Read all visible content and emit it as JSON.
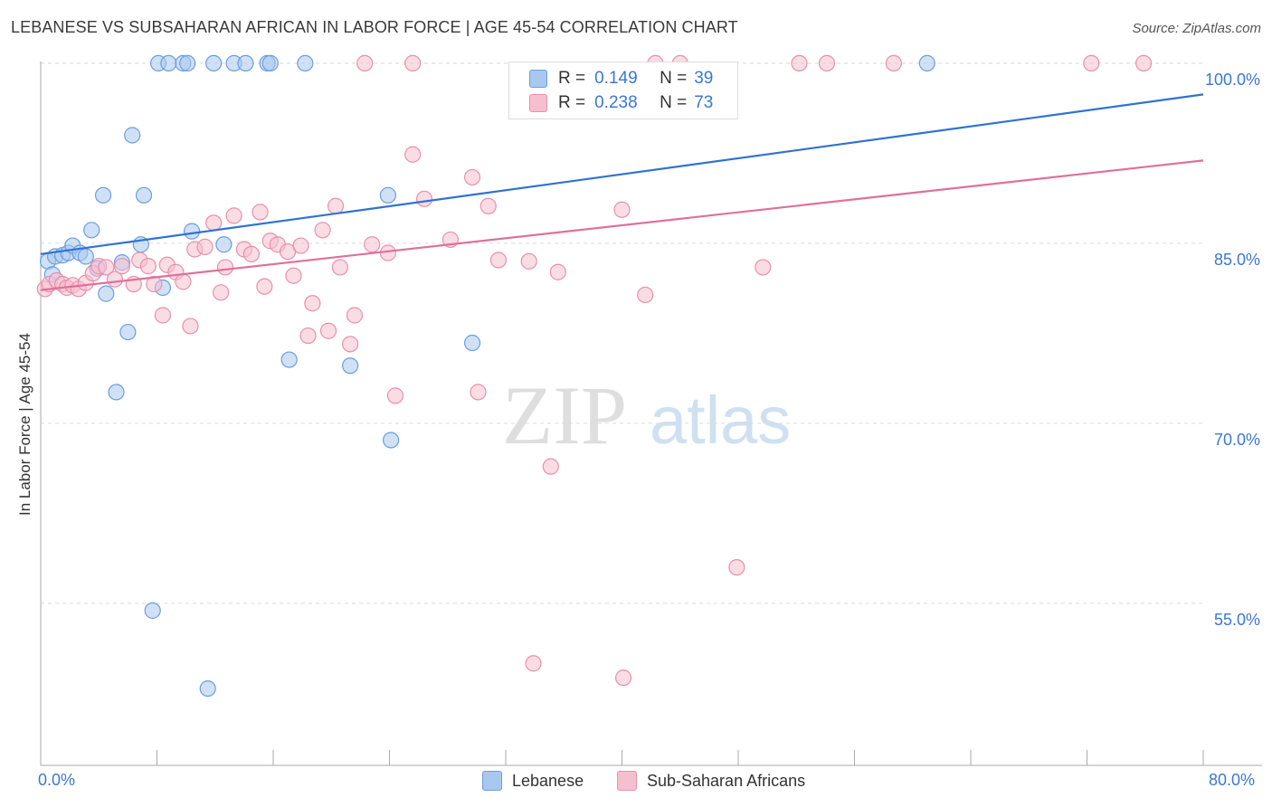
{
  "title": "LEBANESE VS SUBSAHARAN AFRICAN IN LABOR FORCE | AGE 45-54 CORRELATION CHART",
  "source": "Source: ZipAtlas.com",
  "watermark": {
    "zip": "ZIP",
    "atlas": "atlas"
  },
  "legend_top": {
    "rows": [
      {
        "r_label": "R =",
        "r_value": "0.149",
        "n_label": "N =",
        "n_value": "39",
        "color": "#a9c8ef",
        "border": "#6a9ee0"
      },
      {
        "r_label": "R =",
        "r_value": "0.238",
        "n_label": "N =",
        "n_value": "73",
        "color": "#f6bfd0",
        "border": "#e890ac"
      }
    ]
  },
  "legend_bottom": {
    "items": [
      {
        "label": "Lebanese",
        "color": "#a9c8ef",
        "border": "#6a9ee0"
      },
      {
        "label": "Sub-Saharan Africans",
        "color": "#f6bfd0",
        "border": "#e890ac"
      }
    ]
  },
  "chart_data": {
    "type": "scatter",
    "title": "LEBANESE VS SUBSAHARAN AFRICAN IN LABOR FORCE | AGE 45-54 CORRELATION CHART",
    "xlabel": "",
    "ylabel": "In Labor Force | Age 45-54",
    "xlim": [
      0,
      80
    ],
    "ylim": [
      41.5,
      101.5
    ],
    "x_tick_labels": [
      "0.0%",
      "80.0%"
    ],
    "y_ticks": [
      55,
      70,
      85,
      100
    ],
    "y_tick_labels": [
      "55.0%",
      "70.0%",
      "85.0%",
      "100.0%"
    ],
    "grid": true,
    "legend_position": "top-center",
    "series": [
      {
        "name": "Lebanese",
        "color": "#6a9ee0",
        "fill": "#a9c8ef",
        "trend_color": "#2f72d2",
        "trend": {
          "x": [
            0,
            80
          ],
          "y": [
            84.1,
            97.4
          ]
        },
        "points": [
          [
            0.5,
            83.5
          ],
          [
            0.8,
            82.4
          ],
          [
            1.0,
            83.9
          ],
          [
            1.5,
            84.0
          ],
          [
            1.9,
            84.2
          ],
          [
            2.2,
            84.8
          ],
          [
            2.7,
            84.2
          ],
          [
            3.1,
            83.9
          ],
          [
            3.5,
            86.1
          ],
          [
            3.9,
            82.9
          ],
          [
            4.5,
            80.8
          ],
          [
            5.6,
            83.4
          ],
          [
            4.3,
            89.0
          ],
          [
            6.3,
            94.0
          ],
          [
            6.9,
            84.9
          ],
          [
            7.1,
            89.0
          ],
          [
            6.0,
            77.6
          ],
          [
            5.2,
            72.6
          ],
          [
            8.4,
            81.3
          ],
          [
            10.4,
            86.0
          ],
          [
            12.6,
            84.9
          ],
          [
            8.1,
            100.0
          ],
          [
            8.8,
            100.0
          ],
          [
            9.8,
            100.0
          ],
          [
            10.1,
            100.0
          ],
          [
            11.9,
            100.0
          ],
          [
            13.3,
            100.0
          ],
          [
            14.1,
            100.0
          ],
          [
            15.6,
            100.0
          ],
          [
            15.8,
            100.0
          ],
          [
            18.2,
            100.0
          ],
          [
            17.1,
            75.3
          ],
          [
            21.3,
            74.8
          ],
          [
            23.9,
            89.0
          ],
          [
            24.1,
            68.6
          ],
          [
            29.7,
            76.7
          ],
          [
            7.7,
            54.4
          ],
          [
            11.5,
            47.9
          ],
          [
            61.0,
            100.0
          ]
        ]
      },
      {
        "name": "Sub-Saharan Africans",
        "color": "#e890ac",
        "fill": "#f6bfd0",
        "trend_color": "#e0709a",
        "trend": {
          "x": [
            0,
            80
          ],
          "y": [
            81.1,
            91.9
          ]
        },
        "points": [
          [
            0.3,
            81.2
          ],
          [
            0.6,
            81.6
          ],
          [
            1.1,
            81.9
          ],
          [
            1.5,
            81.6
          ],
          [
            1.8,
            81.3
          ],
          [
            2.2,
            81.5
          ],
          [
            2.6,
            81.2
          ],
          [
            3.1,
            81.7
          ],
          [
            3.6,
            82.5
          ],
          [
            4.0,
            83.1
          ],
          [
            4.5,
            83.0
          ],
          [
            5.1,
            82.0
          ],
          [
            5.6,
            83.1
          ],
          [
            6.4,
            81.6
          ],
          [
            6.8,
            83.6
          ],
          [
            7.4,
            83.1
          ],
          [
            7.8,
            81.6
          ],
          [
            8.4,
            79.0
          ],
          [
            8.7,
            83.2
          ],
          [
            9.3,
            82.6
          ],
          [
            9.8,
            81.8
          ],
          [
            10.3,
            78.1
          ],
          [
            10.6,
            84.5
          ],
          [
            11.3,
            84.7
          ],
          [
            11.9,
            86.7
          ],
          [
            12.4,
            80.9
          ],
          [
            12.7,
            83.0
          ],
          [
            13.3,
            87.3
          ],
          [
            14.0,
            84.5
          ],
          [
            14.5,
            84.1
          ],
          [
            15.1,
            87.6
          ],
          [
            15.4,
            81.4
          ],
          [
            15.8,
            85.2
          ],
          [
            16.3,
            84.9
          ],
          [
            17.0,
            84.3
          ],
          [
            17.4,
            82.3
          ],
          [
            17.9,
            84.8
          ],
          [
            18.4,
            77.3
          ],
          [
            18.7,
            80.0
          ],
          [
            19.4,
            86.1
          ],
          [
            19.8,
            77.7
          ],
          [
            20.3,
            88.1
          ],
          [
            20.6,
            83.0
          ],
          [
            21.3,
            76.6
          ],
          [
            21.6,
            79.0
          ],
          [
            22.8,
            84.9
          ],
          [
            23.9,
            84.2
          ],
          [
            24.4,
            72.3
          ],
          [
            25.6,
            92.4
          ],
          [
            26.4,
            88.7
          ],
          [
            28.2,
            85.3
          ],
          [
            29.7,
            90.5
          ],
          [
            30.1,
            72.6
          ],
          [
            30.8,
            88.1
          ],
          [
            31.5,
            83.6
          ],
          [
            33.9,
            50.0
          ],
          [
            33.6,
            83.5
          ],
          [
            35.1,
            66.4
          ],
          [
            35.6,
            82.6
          ],
          [
            40.0,
            87.8
          ],
          [
            40.1,
            48.8
          ],
          [
            41.6,
            80.7
          ],
          [
            42.3,
            100.0
          ],
          [
            44.0,
            100.0
          ],
          [
            47.9,
            58.0
          ],
          [
            49.7,
            83.0
          ],
          [
            52.2,
            100.0
          ],
          [
            54.1,
            100.0
          ],
          [
            58.7,
            100.0
          ],
          [
            72.3,
            100.0
          ],
          [
            75.9,
            100.0
          ],
          [
            22.3,
            100.0
          ],
          [
            25.6,
            100.0
          ]
        ]
      }
    ]
  }
}
